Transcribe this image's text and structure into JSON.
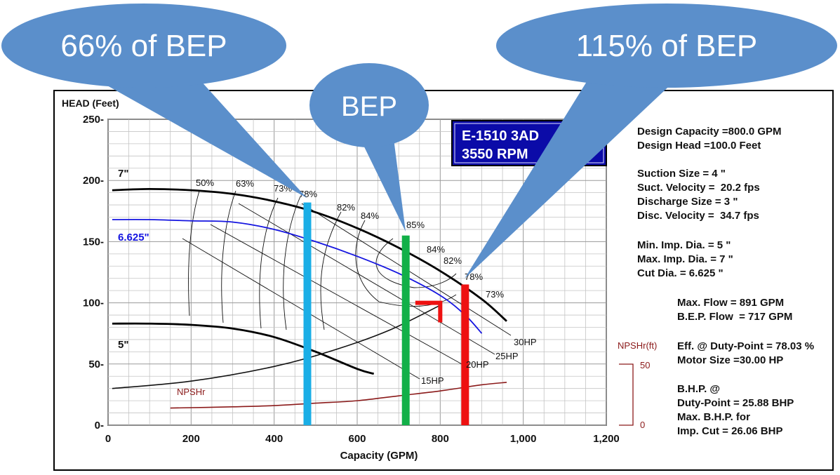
{
  "chart_data": {
    "type": "line",
    "ylabel": "HEAD (Feet)",
    "xlabel": "Capacity (GPM)",
    "xlim": [
      0,
      1200
    ],
    "ylim": [
      0,
      250
    ],
    "x_ticks": [
      "0",
      "200",
      "400",
      "600",
      "800",
      "1,000",
      "1,200"
    ],
    "y_ticks": [
      "0-",
      "50-",
      "100-",
      "150-",
      "200-",
      "250-"
    ],
    "x_tick_values": [
      0,
      200,
      400,
      600,
      800,
      1000,
      1200
    ],
    "y_tick_values": [
      0,
      50,
      100,
      150,
      200,
      250
    ],
    "grid": true,
    "model_box": {
      "line1": "E-1510 3AD",
      "line2": "3550 RPM"
    },
    "series": [
      {
        "name": "7\"",
        "color": "#000000",
        "points": [
          [
            10,
            192
          ],
          [
            100,
            193
          ],
          [
            200,
            192
          ],
          [
            300,
            189
          ],
          [
            400,
            183
          ],
          [
            500,
            174
          ],
          [
            600,
            161
          ],
          [
            700,
            145
          ],
          [
            800,
            126
          ],
          [
            900,
            103
          ],
          [
            960,
            85
          ]
        ]
      },
      {
        "name": "6.625\"",
        "color": "#1515e0",
        "points": [
          [
            10,
            168
          ],
          [
            100,
            168
          ],
          [
            200,
            167
          ],
          [
            300,
            166
          ],
          [
            400,
            160
          ],
          [
            500,
            150
          ],
          [
            600,
            138
          ],
          [
            700,
            124
          ],
          [
            800,
            106
          ],
          [
            860,
            90
          ],
          [
            900,
            75
          ]
        ]
      },
      {
        "name": "5\"",
        "color": "#000000",
        "points": [
          [
            10,
            83
          ],
          [
            100,
            83
          ],
          [
            200,
            82
          ],
          [
            300,
            79
          ],
          [
            400,
            72
          ],
          [
            500,
            60
          ],
          [
            600,
            46
          ],
          [
            640,
            42
          ]
        ]
      },
      {
        "name": "NPSHr",
        "color": "#8b1a1a",
        "points": [
          [
            150,
            14
          ],
          [
            300,
            15
          ],
          [
            400,
            16
          ],
          [
            500,
            18
          ],
          [
            600,
            20
          ],
          [
            700,
            24
          ],
          [
            800,
            28
          ],
          [
            900,
            33
          ],
          [
            960,
            35
          ]
        ]
      }
    ],
    "system_curve": [
      [
        10,
        30
      ],
      [
        200,
        36
      ],
      [
        400,
        48
      ],
      [
        550,
        62
      ],
      [
        680,
        78
      ],
      [
        800,
        98
      ]
    ],
    "efficiency_labels": [
      "50%",
      "63%",
      "73%",
      "78%",
      "82%",
      "84%",
      "85%",
      "84%",
      "82%",
      "78%",
      "73%"
    ],
    "power_labels": [
      "30HP",
      "25HP",
      "20HP",
      "15HP"
    ],
    "npsh_axis": {
      "title": "NPSHr(ft)",
      "ticks": [
        "50",
        "0"
      ]
    },
    "diameter_labels": {
      "d7": "7\"",
      "d6625": "6.625\"",
      "d5": "5\""
    },
    "npsh_curve_label": "NPSHr",
    "markers": [
      {
        "name": "66% of BEP",
        "x": 480,
        "color": "#1aaee6",
        "top_head": 182
      },
      {
        "name": "BEP",
        "x": 717,
        "color": "#12b048",
        "top_head": 155
      },
      {
        "name": "115% of BEP",
        "x": 860,
        "color": "#ee1111",
        "top_head": 115
      }
    ],
    "duty_point": {
      "x": 800,
      "y": 100
    }
  },
  "callouts": {
    "left": "66% of BEP",
    "middle": "BEP",
    "right": "115% of BEP",
    "fill": "#5b8fcb"
  },
  "specs": {
    "design_capacity": "Design Capacity =800.0 GPM",
    "design_head": "Design Head =100.0 Feet",
    "suction_size": "Suction Size = 4 \"",
    "suct_velocity": "Suct. Velocity =  20.2 fps",
    "discharge_size": "Discharge Size = 3 \"",
    "disc_velocity": "Disc. Velocity =  34.7 fps",
    "min_imp": "Min. Imp. Dia. = 5 \"",
    "max_imp": "Max. Imp. Dia. = 7 \"",
    "cut_dia": "Cut Dia. = 6.625 \"",
    "max_flow": "Max. Flow = 891 GPM",
    "bep_flow": "B.E.P. Flow  = 717 GPM",
    "eff_duty": "Eff. @ Duty-Point = 78.03 %",
    "motor_size": "Motor Size =30.00 HP",
    "bhp_at": "B.H.P. @",
    "bhp_duty": "Duty-Point = 25.88 BHP",
    "max_bhp_for": "Max. B.H.P. for",
    "imp_cut": "Imp. Cut = 26.06 BHP"
  }
}
